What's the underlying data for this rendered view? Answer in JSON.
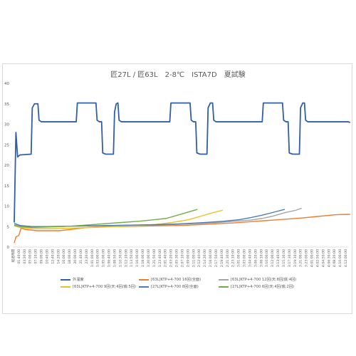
{
  "chart_data": {
    "type": "line",
    "title": "匠27L / 匠63L　2-8℃　ISTA7D　夏試験",
    "xlabel": "",
    "ylabel": "",
    "ylim": [
      0,
      40
    ],
    "yticks": [
      0,
      5,
      10,
      15,
      20,
      25,
      30,
      35,
      40
    ],
    "grid": false,
    "legend_position": "bottom",
    "x_categories": [
      "経過時間",
      "01:40:00",
      "03:20:00",
      "05:00:00",
      "07:10:00",
      "09:00:00",
      "10:40:00",
      "12:40:00",
      "14:20:00",
      "16:00:00",
      "18:00:00",
      "20:00:00",
      "21:40:00",
      "23:20:00",
      "1:01:00:00",
      "1:03:00:00",
      "1:05:00:00",
      "1:06:40:00",
      "1:08:50:00",
      "1:10:30:00",
      "1:12:10:00",
      "1:13:50:00",
      "1:16:00:00",
      "1:18:00:00",
      "1:20:00:00",
      "1:21:50:00",
      "1:23:40:00",
      "2:01:40:00",
      "2:03:20:00",
      "2:05:30:00",
      "2:07:10:00",
      "2:09:00:00",
      "2:11:00:00",
      "2:12:40:00",
      "2:14:20:00",
      "2:16:00:00",
      "2:17:50:00",
      "2:19:40:00",
      "2:21:30:00",
      "2:23:10:00",
      "3:01:00:00",
      "3:03:00:00",
      "3:04:40:00",
      "3:06:20:00",
      "3:08:10:00",
      "3:10:00:00",
      "3:12:00:00",
      "3:13:40:00",
      "3:15:30:00",
      "3:17:30:00",
      "3:19:10:00",
      "3:21:00:00",
      "3:23:00:00",
      "4:01:00:00",
      "4:02:50:00",
      "4:04:50:00",
      "4:06:30:00",
      "4:08:20:00",
      "4:10:00:00",
      "4:12:00:00"
    ],
    "series": [
      {
        "name": "外温度",
        "color": "#2f5fa7",
        "points": [
          [
            0,
            6
          ],
          [
            0.3,
            28
          ],
          [
            0.6,
            22
          ],
          [
            1,
            22.5
          ],
          [
            3,
            22.7
          ],
          [
            3.2,
            34
          ],
          [
            3.6,
            35
          ],
          [
            4.2,
            35
          ],
          [
            4.4,
            31
          ],
          [
            4.8,
            30.6
          ],
          [
            11,
            30.6
          ],
          [
            11.2,
            35.2
          ],
          [
            14.5,
            35.2
          ],
          [
            14.7,
            31
          ],
          [
            15.1,
            30.6
          ],
          [
            15.5,
            30.6
          ],
          [
            15.7,
            23
          ],
          [
            16.2,
            22.7
          ],
          [
            17.6,
            22.7
          ],
          [
            17.8,
            33
          ],
          [
            18.1,
            35
          ],
          [
            18.4,
            35.2
          ],
          [
            18.6,
            31
          ],
          [
            19,
            30.6
          ],
          [
            27.6,
            30.6
          ],
          [
            27.8,
            35.2
          ],
          [
            31.2,
            35.2
          ],
          [
            31.4,
            31
          ],
          [
            31.8,
            30.6
          ],
          [
            32.2,
            30.6
          ],
          [
            32.4,
            23
          ],
          [
            33,
            22.7
          ],
          [
            34.2,
            22.7
          ],
          [
            34.4,
            34
          ],
          [
            34.8,
            35.2
          ],
          [
            35.2,
            35.2
          ],
          [
            35.4,
            31
          ],
          [
            35.8,
            30.6
          ],
          [
            44,
            30.6
          ],
          [
            44.2,
            35.2
          ],
          [
            47.6,
            35.2
          ],
          [
            47.8,
            31
          ],
          [
            48.2,
            30.6
          ],
          [
            48.6,
            30.6
          ],
          [
            48.8,
            23
          ],
          [
            49.4,
            22.7
          ],
          [
            50.6,
            22.7
          ],
          [
            50.8,
            34
          ],
          [
            51.2,
            35.2
          ],
          [
            51.5,
            35.2
          ],
          [
            51.7,
            31
          ],
          [
            52.1,
            30.6
          ],
          [
            59.3,
            30.6
          ],
          [
            59.6,
            30.4
          ]
        ]
      },
      {
        "name": "[63L]KTP+4-700 16回(全面)",
        "color": "#ed7d31",
        "points": [
          [
            0,
            1
          ],
          [
            0.3,
            2.5
          ],
          [
            0.8,
            2.8
          ],
          [
            1.2,
            4.6
          ],
          [
            2,
            4.3
          ],
          [
            4,
            4
          ],
          [
            8,
            4
          ],
          [
            10,
            4.3
          ],
          [
            13,
            4.8
          ],
          [
            16,
            5
          ],
          [
            19,
            5
          ],
          [
            22,
            5.1
          ],
          [
            26,
            5.2
          ],
          [
            30,
            5.3
          ],
          [
            33,
            5.5
          ],
          [
            36,
            5.7
          ],
          [
            39,
            5.9
          ],
          [
            42,
            6.2
          ],
          [
            45,
            6.5
          ],
          [
            48,
            6.8
          ],
          [
            51,
            7.1
          ],
          [
            54,
            7.5
          ],
          [
            57,
            7.9
          ],
          [
            59.6,
            8
          ]
        ]
      },
      {
        "name": "[63L]KTP+4-700 12回(天:8回/底:4回)",
        "color": "#a5a5a5",
        "points": [
          [
            0,
            5.5
          ],
          [
            1,
            5.2
          ],
          [
            3,
            5
          ],
          [
            6,
            5
          ],
          [
            10,
            5.1
          ],
          [
            14,
            5.2
          ],
          [
            18,
            5.3
          ],
          [
            22,
            5.3
          ],
          [
            26,
            5.4
          ],
          [
            30,
            5.6
          ],
          [
            33,
            5.8
          ],
          [
            36,
            6
          ],
          [
            39,
            6.3
          ],
          [
            42,
            6.6
          ],
          [
            44,
            7
          ],
          [
            46,
            7.6
          ],
          [
            48,
            8.4
          ],
          [
            50,
            9
          ],
          [
            51,
            9.5
          ]
        ]
      },
      {
        "name": "[63L]KTP+4-700 9回(天:4回/底:5回)",
        "color": "#e8c22a",
        "points": [
          [
            0,
            5.2
          ],
          [
            1,
            4.8
          ],
          [
            3,
            4.5
          ],
          [
            6,
            4.5
          ],
          [
            10,
            4.6
          ],
          [
            14,
            4.8
          ],
          [
            18,
            5
          ],
          [
            22,
            5.2
          ],
          [
            25,
            5.5
          ],
          [
            28,
            6
          ],
          [
            31,
            6.7
          ],
          [
            33,
            7.5
          ],
          [
            35,
            8.3
          ],
          [
            37,
            9
          ]
        ]
      },
      {
        "name": "[27L]KTP+4-700 8回(全面)",
        "color": "#4a7ebb",
        "points": [
          [
            0,
            5.8
          ],
          [
            1,
            5.3
          ],
          [
            3,
            5
          ],
          [
            6,
            5
          ],
          [
            10,
            5.1
          ],
          [
            14,
            5.2
          ],
          [
            18,
            5.3
          ],
          [
            22,
            5.4
          ],
          [
            26,
            5.5
          ],
          [
            30,
            5.7
          ],
          [
            34,
            6
          ],
          [
            37,
            6.3
          ],
          [
            40,
            6.7
          ],
          [
            42,
            7.2
          ],
          [
            44,
            7.8
          ],
          [
            46,
            8.5
          ],
          [
            48,
            9.2
          ]
        ]
      },
      {
        "name": "[27L]KTP+4-700 6回(天:4回/底:2回)",
        "color": "#70ad47",
        "points": [
          [
            0,
            5.3
          ],
          [
            1,
            5
          ],
          [
            3,
            4.8
          ],
          [
            6,
            4.9
          ],
          [
            10,
            5.1
          ],
          [
            13,
            5.4
          ],
          [
            16,
            5.7
          ],
          [
            19,
            6
          ],
          [
            22,
            6.3
          ],
          [
            25,
            6.7
          ],
          [
            27,
            7
          ],
          [
            29,
            7.8
          ],
          [
            31,
            8.6
          ],
          [
            32.5,
            9.2
          ]
        ]
      }
    ]
  }
}
